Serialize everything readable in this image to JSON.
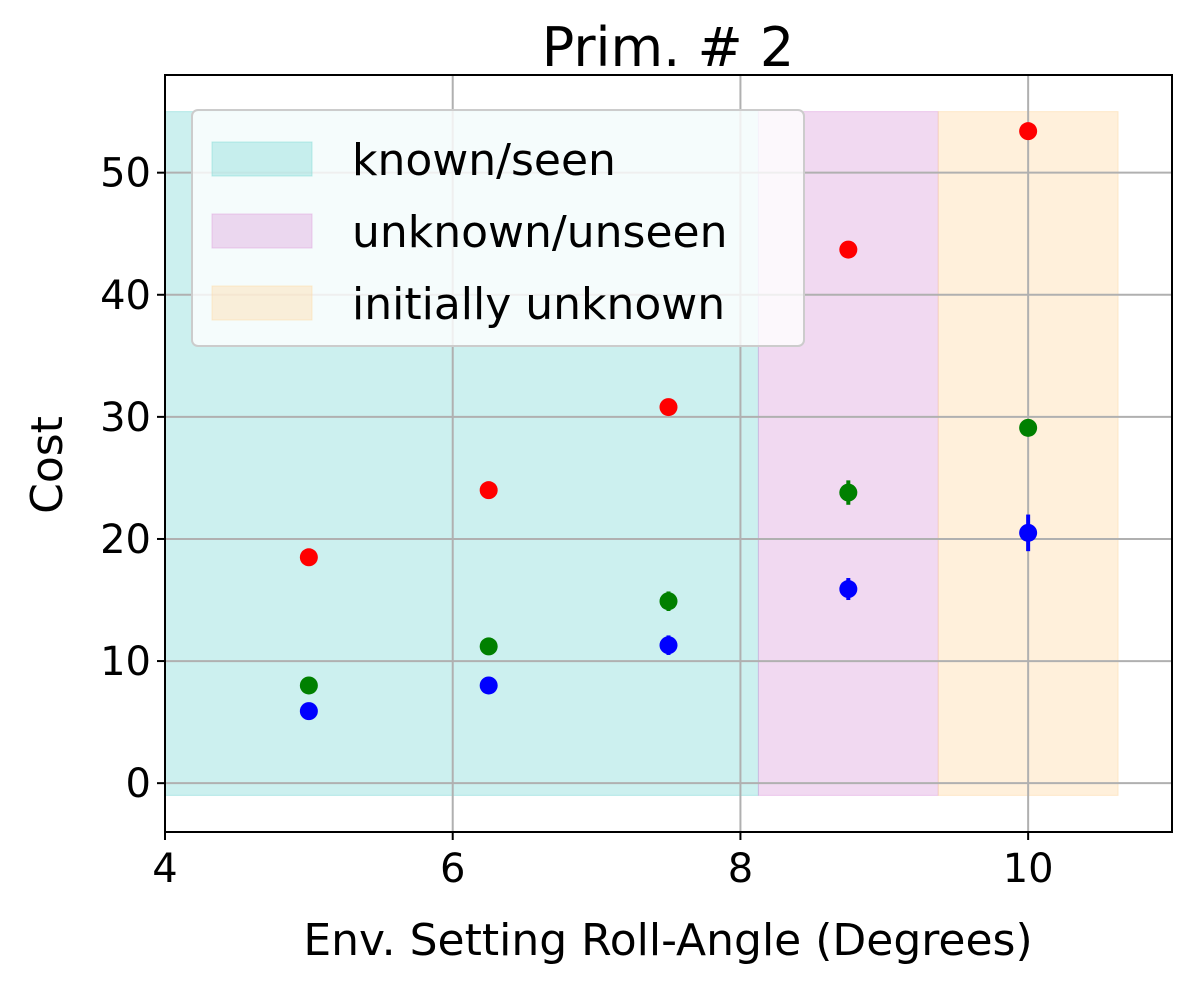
{
  "chart_data": {
    "type": "scatter",
    "title": "Prim. # 2",
    "xlabel": "Env. Setting Roll-Angle (Degrees)",
    "ylabel": "Cost",
    "xlim": [
      4,
      11
    ],
    "ylim": [
      -4,
      58
    ],
    "xticks": [
      4,
      6,
      8,
      10
    ],
    "yticks": [
      0,
      10,
      20,
      30,
      40,
      50
    ],
    "grid": true,
    "legend_position": "top-left",
    "regions": [
      {
        "name": "known/seen",
        "x_range": [
          4,
          8.125
        ],
        "y_range": [
          -1,
          55
        ],
        "color": "#7fd9d6"
      },
      {
        "name": "unknown/unseen",
        "x_range": [
          8.125,
          9.375
        ],
        "y_range": [
          -1,
          55
        ],
        "color": "#dda0dd"
      },
      {
        "name": "initially unknown",
        "x_range": [
          9.375,
          10.625
        ],
        "y_range": [
          -1,
          55
        ],
        "color": "#fed9a6"
      }
    ],
    "series": [
      {
        "color": "#ff0000",
        "x": [
          5,
          6.25,
          7.5,
          8.75,
          10
        ],
        "y": [
          18.5,
          24.0,
          30.8,
          43.7,
          53.4
        ],
        "yerr": [
          0.3,
          0.3,
          0.4,
          0.5,
          0.5
        ]
      },
      {
        "color": "#008000",
        "x": [
          5,
          6.25,
          7.5,
          8.75,
          10
        ],
        "y": [
          8.0,
          11.2,
          14.9,
          23.8,
          29.1
        ],
        "yerr": [
          0.3,
          0.4,
          0.8,
          1.0,
          0.6
        ]
      },
      {
        "color": "#0000ff",
        "x": [
          5,
          6.25,
          7.5,
          8.75,
          10
        ],
        "y": [
          5.9,
          8.0,
          11.3,
          15.9,
          20.5
        ],
        "yerr": [
          0.3,
          0.3,
          0.8,
          0.9,
          1.5
        ]
      }
    ]
  }
}
